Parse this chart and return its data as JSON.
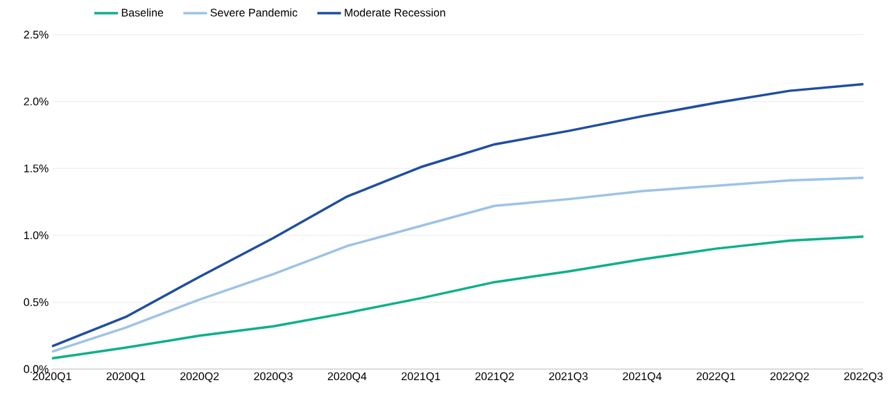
{
  "chart_data": {
    "type": "line",
    "categories": [
      "2020Q1",
      "2020Q1",
      "2020Q2",
      "2020Q3",
      "2020Q4",
      "2021Q1",
      "2021Q2",
      "2021Q3",
      "2021Q4",
      "2022Q1",
      "2022Q2",
      "2022Q3"
    ],
    "series": [
      {
        "name": "Baseline",
        "color": "#0db08a",
        "values": [
          0.08,
          0.16,
          0.25,
          0.32,
          0.42,
          0.53,
          0.65,
          0.73,
          0.82,
          0.9,
          0.96,
          0.99
        ]
      },
      {
        "name": "Severe Pandemic",
        "color": "#9dc3e6",
        "values": [
          0.13,
          0.31,
          0.52,
          0.71,
          0.92,
          1.07,
          1.22,
          1.27,
          1.33,
          1.37,
          1.41,
          1.43
        ]
      },
      {
        "name": "Moderate Recession",
        "color": "#1f4ea0",
        "values": [
          0.17,
          0.39,
          0.69,
          0.98,
          1.29,
          1.51,
          1.68,
          1.78,
          1.89,
          1.99,
          2.08,
          2.13
        ]
      }
    ],
    "ylim": [
      0,
      2.5
    ],
    "yticks": [
      {
        "value": 0,
        "label": "0.0%"
      },
      {
        "value": 0.5,
        "label": "0.5%"
      },
      {
        "value": 1,
        "label": "1.0%"
      },
      {
        "value": 1.5,
        "label": "1.5%"
      },
      {
        "value": 2,
        "label": "2.0%"
      },
      {
        "value": 2.5,
        "label": "2.5%"
      }
    ],
    "grid": "y",
    "legend": "top"
  }
}
